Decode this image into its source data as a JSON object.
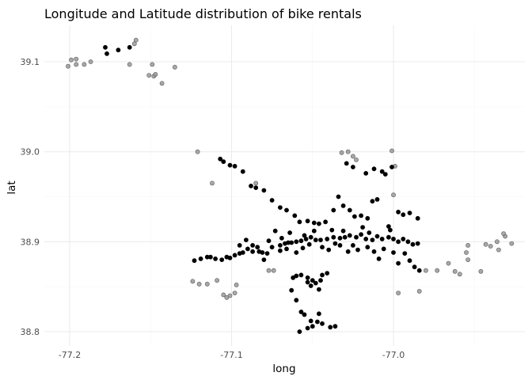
{
  "chart_data": {
    "type": "scatter",
    "title": "Longitude and Latitude distribution of bike rentals",
    "xlabel": "long",
    "ylabel": "lat",
    "xlim": [
      -77.225,
      -76.965
    ],
    "ylim": [
      38.792,
      39.135
    ],
    "xticks": [
      -77.2,
      -77.1,
      -77.0
    ],
    "xtick_labels": [
      "-77.2",
      "-77.1",
      "-77.0"
    ],
    "yticks": [
      38.8,
      38.9,
      39.0,
      39.1
    ],
    "ytick_labels": [
      "38.8",
      "38.9",
      "39.0",
      "39.1"
    ],
    "grid": true,
    "legend": "none",
    "colors": {
      "dark": "#000000",
      "light": "#999999",
      "grid": "#ebebeb"
    },
    "series": [
      {
        "color": "#999999",
        "points": [
          [
            -77.201,
            39.095
          ],
          [
            -77.199,
            39.102
          ],
          [
            -77.196,
            39.103
          ],
          [
            -77.196,
            39.097
          ],
          [
            -77.191,
            39.097
          ],
          [
            -77.187,
            39.1
          ],
          [
            -77.163,
            39.097
          ],
          [
            -77.159,
            39.124
          ],
          [
            -77.16,
            39.12
          ],
          [
            -77.151,
            39.085
          ],
          [
            -77.148,
            39.084
          ],
          [
            -77.147,
            39.086
          ],
          [
            -77.149,
            39.097
          ],
          [
            -77.143,
            39.076
          ],
          [
            -77.135,
            39.094
          ],
          [
            -77.121,
            39.0
          ],
          [
            -77.112,
            38.965
          ],
          [
            -77.124,
            38.856
          ],
          [
            -77.12,
            38.853
          ],
          [
            -77.115,
            38.853
          ],
          [
            -77.109,
            38.857
          ],
          [
            -77.105,
            38.841
          ],
          [
            -77.103,
            38.838
          ],
          [
            -77.101,
            38.84
          ],
          [
            -77.098,
            38.843
          ],
          [
            -77.097,
            38.852
          ],
          [
            -77.085,
            38.965
          ],
          [
            -77.077,
            38.868
          ],
          [
            -77.074,
            38.868
          ],
          [
            -77.032,
            38.999
          ],
          [
            -77.028,
            39.0
          ],
          [
            -77.025,
            38.995
          ],
          [
            -77.023,
            38.991
          ],
          [
            -77.001,
            39.001
          ],
          [
            -76.999,
            38.984
          ],
          [
            -77.0,
            38.952
          ],
          [
            -76.997,
            38.843
          ],
          [
            -76.984,
            38.845
          ],
          [
            -76.98,
            38.868
          ],
          [
            -76.973,
            38.868
          ],
          [
            -76.966,
            38.876
          ],
          [
            -76.962,
            38.867
          ],
          [
            -76.959,
            38.864
          ],
          [
            -76.954,
            38.88
          ],
          [
            -76.955,
            38.888
          ],
          [
            -76.954,
            38.896
          ],
          [
            -76.946,
            38.867
          ],
          [
            -76.943,
            38.897
          ],
          [
            -76.94,
            38.895
          ],
          [
            -76.935,
            38.891
          ],
          [
            -76.936,
            38.9
          ],
          [
            -76.931,
            38.906
          ],
          [
            -76.932,
            38.909
          ],
          [
            -76.927,
            38.898
          ]
        ]
      },
      {
        "color": "#000000",
        "points": [
          [
            -77.177,
            39.109
          ],
          [
            -77.178,
            39.116
          ],
          [
            -77.17,
            39.113
          ],
          [
            -77.163,
            39.116
          ],
          [
            -77.123,
            38.879
          ],
          [
            -77.119,
            38.881
          ],
          [
            -77.115,
            38.883
          ],
          [
            -77.113,
            38.883
          ],
          [
            -77.11,
            38.881
          ],
          [
            -77.106,
            38.88
          ],
          [
            -77.103,
            38.883
          ],
          [
            -77.101,
            38.882
          ],
          [
            -77.098,
            38.885
          ],
          [
            -77.095,
            38.887
          ],
          [
            -77.093,
            38.888
          ],
          [
            -77.09,
            38.892
          ],
          [
            -77.087,
            38.896
          ],
          [
            -77.083,
            38.889
          ],
          [
            -77.081,
            38.888
          ],
          [
            -77.078,
            38.887
          ],
          [
            -77.075,
            38.894
          ],
          [
            -77.07,
            38.896
          ],
          [
            -77.067,
            38.898
          ],
          [
            -77.063,
            38.899
          ],
          [
            -77.06,
            38.9
          ],
          [
            -77.057,
            38.901
          ],
          [
            -77.054,
            38.903
          ],
          [
            -77.051,
            38.905
          ],
          [
            -77.048,
            38.902
          ],
          [
            -77.045,
            38.902
          ],
          [
            -77.041,
            38.903
          ],
          [
            -77.037,
            38.905
          ],
          [
            -77.033,
            38.904
          ],
          [
            -77.03,
            38.905
          ],
          [
            -77.027,
            38.907
          ],
          [
            -77.023,
            38.905
          ],
          [
            -77.02,
            38.908
          ],
          [
            -77.017,
            38.903
          ],
          [
            -77.013,
            38.902
          ],
          [
            -77.01,
            38.906
          ],
          [
            -77.007,
            38.903
          ],
          [
            -77.003,
            38.905
          ],
          [
            -77.0,
            38.903
          ],
          [
            -76.997,
            38.9
          ],
          [
            -76.994,
            38.903
          ],
          [
            -76.991,
            38.9
          ],
          [
            -76.988,
            38.897
          ],
          [
            -76.985,
            38.898
          ],
          [
            -77.107,
            38.992
          ],
          [
            -77.105,
            38.989
          ],
          [
            -77.101,
            38.985
          ],
          [
            -77.098,
            38.984
          ],
          [
            -77.093,
            38.978
          ],
          [
            -77.088,
            38.962
          ],
          [
            -77.085,
            38.96
          ],
          [
            -77.08,
            38.957
          ],
          [
            -77.075,
            38.946
          ],
          [
            -77.07,
            38.938
          ],
          [
            -77.066,
            38.935
          ],
          [
            -77.061,
            38.929
          ],
          [
            -77.058,
            38.922
          ],
          [
            -77.053,
            38.923
          ],
          [
            -77.049,
            38.921
          ],
          [
            -77.046,
            38.92
          ],
          [
            -77.042,
            38.922
          ],
          [
            -77.037,
            38.935
          ],
          [
            -77.034,
            38.95
          ],
          [
            -77.031,
            38.94
          ],
          [
            -77.027,
            38.935
          ],
          [
            -77.024,
            38.928
          ],
          [
            -77.02,
            38.929
          ],
          [
            -77.016,
            38.926
          ],
          [
            -77.013,
            38.945
          ],
          [
            -77.01,
            38.947
          ],
          [
            -77.005,
            38.975
          ],
          [
            -77.007,
            38.978
          ],
          [
            -77.001,
            38.983
          ],
          [
            -76.997,
            38.933
          ],
          [
            -76.994,
            38.93
          ],
          [
            -76.99,
            38.932
          ],
          [
            -76.985,
            38.926
          ],
          [
            -77.029,
            38.987
          ],
          [
            -77.025,
            38.983
          ],
          [
            -77.017,
            38.976
          ],
          [
            -77.012,
            38.981
          ],
          [
            -77.06,
            38.862
          ],
          [
            -77.057,
            38.863
          ],
          [
            -77.053,
            38.86
          ],
          [
            -77.05,
            38.857
          ],
          [
            -77.048,
            38.854
          ],
          [
            -77.051,
            38.851
          ],
          [
            -77.046,
            38.847
          ],
          [
            -77.044,
            38.863
          ],
          [
            -77.045,
            38.857
          ],
          [
            -77.053,
            38.855
          ],
          [
            -77.063,
            38.846
          ],
          [
            -77.06,
            38.835
          ],
          [
            -77.057,
            38.822
          ],
          [
            -77.055,
            38.819
          ],
          [
            -77.051,
            38.812
          ],
          [
            -77.047,
            38.811
          ],
          [
            -77.044,
            38.809
          ],
          [
            -77.039,
            38.805
          ],
          [
            -77.036,
            38.806
          ],
          [
            -77.046,
            38.82
          ],
          [
            -77.058,
            38.8
          ],
          [
            -77.053,
            38.804
          ],
          [
            -77.05,
            38.806
          ],
          [
            -77.062,
            38.86
          ],
          [
            -77.041,
            38.865
          ],
          [
            -77.095,
            38.896
          ],
          [
            -77.091,
            38.902
          ],
          [
            -77.087,
            38.889
          ],
          [
            -77.084,
            38.894
          ],
          [
            -77.08,
            38.88
          ],
          [
            -77.077,
            38.901
          ],
          [
            -77.073,
            38.912
          ],
          [
            -77.069,
            38.904
          ],
          [
            -77.066,
            38.892
          ],
          [
            -77.064,
            38.91
          ],
          [
            -77.06,
            38.888
          ],
          [
            -77.056,
            38.893
          ],
          [
            -77.052,
            38.897
          ],
          [
            -77.049,
            38.912
          ],
          [
            -77.044,
            38.894
          ],
          [
            -77.04,
            38.891
          ],
          [
            -77.036,
            38.898
          ],
          [
            -77.033,
            38.896
          ],
          [
            -77.031,
            38.912
          ],
          [
            -77.028,
            38.889
          ],
          [
            -77.025,
            38.896
          ],
          [
            -77.022,
            38.891
          ],
          [
            -77.019,
            38.916
          ],
          [
            -77.016,
            38.894
          ],
          [
            -77.012,
            38.889
          ],
          [
            -77.009,
            38.881
          ],
          [
            -77.006,
            38.892
          ],
          [
            -77.003,
            38.917
          ],
          [
            -77.0,
            38.888
          ],
          [
            -76.997,
            38.876
          ],
          [
            -76.993,
            38.887
          ],
          [
            -76.99,
            38.879
          ],
          [
            -76.987,
            38.872
          ],
          [
            -76.984,
            38.868
          ],
          [
            -77.002,
            38.913
          ],
          [
            -77.015,
            38.91
          ],
          [
            -77.038,
            38.913
          ],
          [
            -77.055,
            38.907
          ],
          [
            -77.065,
            38.899
          ],
          [
            -77.07,
            38.89
          ]
        ]
      }
    ]
  }
}
